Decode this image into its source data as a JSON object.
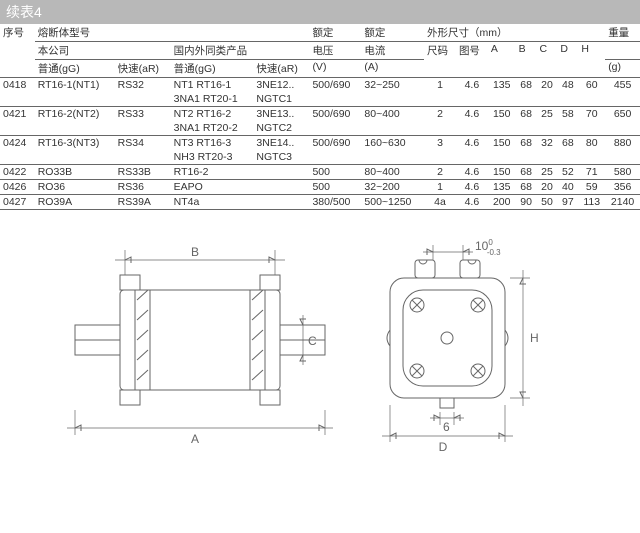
{
  "title": "续表4",
  "header": {
    "seq": "序号",
    "fusemodel": "熔断体型号",
    "company": "本公司",
    "equiv": "国内外同类产品",
    "normal": "普通(gG)",
    "fast": "快速(aR)",
    "voltage_rated": "额定电压",
    "voltage_unit": "(V)",
    "current_rated": "额定电流",
    "current_unit": "(A)",
    "dims": "外形尺寸（mm）",
    "chi": "尺码",
    "tu": "图号",
    "A": "A",
    "B": "B",
    "C": "C",
    "D": "D",
    "H": "H",
    "weight": "重量",
    "weight_unit": "(g)"
  },
  "rows": [
    {
      "seq": "0418",
      "m1": "RT16-1(NT1)",
      "m2": "RS32",
      "e1": "NT1 RT16-1",
      "e2": "3NE12..",
      "e1b": "3NA1 RT20-1",
      "e2b": "NGTC1",
      "v": "500/690",
      "cur": "32~250",
      "chi": "1",
      "tu": "4.6",
      "A": "135",
      "B": "68",
      "C": "20",
      "D": "48",
      "H": "60",
      "g": "455"
    },
    {
      "seq": "0421",
      "m1": "RT16-2(NT2)",
      "m2": "RS33",
      "e1": "NT2 RT16-2",
      "e2": "3NE13..",
      "e1b": "3NA1 RT20-2",
      "e2b": "NGTC2",
      "v": "500/690",
      "cur": "80~400",
      "chi": "2",
      "tu": "4.6",
      "A": "150",
      "B": "68",
      "C": "25",
      "D": "58",
      "H": "70",
      "g": "650"
    },
    {
      "seq": "0424",
      "m1": "RT16-3(NT3)",
      "m2": "RS34",
      "e1": "NT3 RT16-3",
      "e2": "3NE14..",
      "e1b": "NH3 RT20-3",
      "e2b": "NGTC3",
      "v": "500/690",
      "cur": "160~630",
      "chi": "3",
      "tu": "4.6",
      "A": "150",
      "B": "68",
      "C": "32",
      "D": "68",
      "H": "80",
      "g": "880"
    },
    {
      "seq": "0422",
      "m1": "RO33B",
      "m2": "RS33B",
      "e1": "RT16-2",
      "e2": "",
      "v": "500",
      "cur": "80~400",
      "chi": "2",
      "tu": "4.6",
      "A": "150",
      "B": "68",
      "C": "25",
      "D": "52",
      "H": "71",
      "g": "580"
    },
    {
      "seq": "0426",
      "m1": "RO36",
      "m2": "RS36",
      "e1": "EAPO",
      "e2": "",
      "v": "500",
      "cur": "32~200",
      "chi": "1",
      "tu": "4.6",
      "A": "135",
      "B": "68",
      "C": "20",
      "D": "40",
      "H": "59",
      "g": "356"
    },
    {
      "seq": "0427",
      "m1": "RO39A",
      "m2": "RS39A",
      "e1": "NT4a",
      "e2": "",
      "v": "380/500",
      "cur": "500~1250",
      "chi": "4a",
      "tu": "4.6",
      "A": "200",
      "B": "90",
      "C": "50",
      "D": "97",
      "H": "113",
      "g": "2140"
    }
  ],
  "labels": {
    "A": "A",
    "B": "B",
    "C": "C",
    "D": "D",
    "H": "H",
    "tol": "10-0.3",
    "tol_top": "10",
    "tol_sub": "-0.3",
    "tol_sup": "0"
  },
  "colors": {
    "line": "#666666",
    "titlebar_bg": "#b8b8b8",
    "titlebar_fg": "#ffffff"
  }
}
